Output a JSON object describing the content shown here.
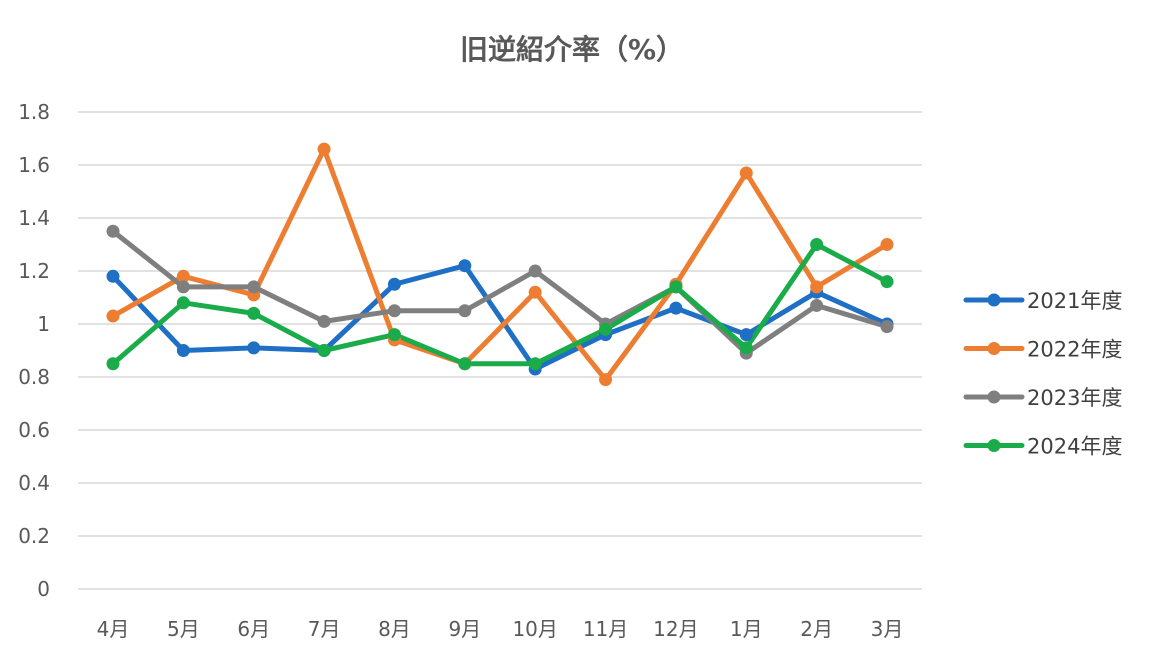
{
  "chart_data": {
    "type": "line",
    "title": "旧逆紹介率（%）",
    "xlabel": "",
    "ylabel": "",
    "ylim": [
      0,
      1.8
    ],
    "y_ticks": [
      "0",
      "0.2",
      "0.4",
      "0.6",
      "0.8",
      "1",
      "1.2",
      "1.4",
      "1.6",
      "1.8"
    ],
    "y_tick_values": [
      0,
      0.2,
      0.4,
      0.6,
      0.8,
      1.0,
      1.2,
      1.4,
      1.6,
      1.8
    ],
    "grid": true,
    "legend_position": "right",
    "categories": [
      "4月",
      "5月",
      "6月",
      "7月",
      "8月",
      "9月",
      "10月",
      "11月",
      "12月",
      "1月",
      "2月",
      "3月"
    ],
    "series": [
      {
        "name": "2021年度",
        "color": "#1f6fc5",
        "values": [
          1.18,
          0.9,
          0.91,
          0.9,
          1.15,
          1.22,
          0.83,
          0.96,
          1.06,
          0.96,
          1.12,
          1.0
        ]
      },
      {
        "name": "2022年度",
        "color": "#ed7d31",
        "values": [
          1.03,
          1.18,
          1.11,
          1.66,
          0.94,
          0.85,
          1.12,
          0.79,
          1.15,
          1.57,
          1.14,
          1.3
        ]
      },
      {
        "name": "2023年度",
        "color": "#7f7f7f",
        "values": [
          1.35,
          1.14,
          1.14,
          1.01,
          1.05,
          1.05,
          1.2,
          1.0,
          1.14,
          0.89,
          1.07,
          0.99
        ]
      },
      {
        "name": "2024年度",
        "color": "#1aab4a",
        "values": [
          0.85,
          1.08,
          1.04,
          0.9,
          0.96,
          0.85,
          0.85,
          0.98,
          1.14,
          0.91,
          1.3,
          1.16
        ]
      }
    ]
  }
}
